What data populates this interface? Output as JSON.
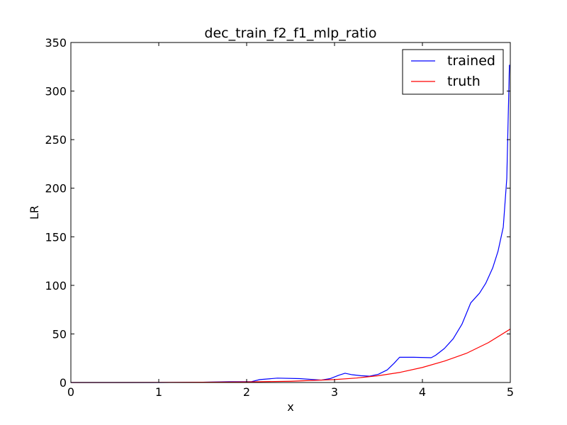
{
  "chart_data": {
    "type": "line",
    "title": "dec_train_f2_f1_mlp_ratio",
    "xlabel": "x",
    "ylabel": "LR",
    "xlim": [
      0,
      5
    ],
    "ylim": [
      0,
      350
    ],
    "xticks": [
      "0",
      "1",
      "2",
      "3",
      "4",
      "5"
    ],
    "yticks": [
      "0",
      "50",
      "100",
      "150",
      "200",
      "250",
      "300",
      "350"
    ],
    "legend_position": "top-right",
    "grid": false,
    "series": [
      {
        "name": "trained",
        "color": "#0000ff",
        "x": [
          0,
          1.0,
          1.5,
          1.8,
          2.05,
          2.15,
          2.35,
          2.6,
          2.85,
          2.95,
          3.05,
          3.12,
          3.2,
          3.3,
          3.4,
          3.5,
          3.6,
          3.68,
          3.74,
          3.9,
          4.1,
          4.15,
          4.25,
          4.35,
          4.45,
          4.55,
          4.65,
          4.72,
          4.8,
          4.86,
          4.92,
          4.96,
          4.99
        ],
        "y": [
          0,
          0,
          0.3,
          0.8,
          0.8,
          3,
          4.5,
          4,
          2.5,
          4,
          7.5,
          9.5,
          8,
          7,
          6.5,
          8.5,
          13,
          20,
          26,
          26,
          25.5,
          28,
          35,
          45,
          60,
          82,
          92,
          102,
          118,
          135,
          160,
          210,
          327
        ]
      },
      {
        "name": "truth",
        "color": "#ff0000",
        "x": [
          0,
          0.5,
          1.0,
          1.5,
          2.0,
          2.5,
          3.0,
          3.25,
          3.5,
          3.75,
          4.0,
          4.25,
          4.5,
          4.75,
          5.0
        ],
        "y": [
          0.0,
          0.0,
          0.1,
          0.3,
          0.6,
          1.3,
          3.0,
          4.6,
          7.0,
          10.5,
          15.5,
          22.0,
          30.0,
          41.0,
          55.0
        ]
      }
    ]
  }
}
